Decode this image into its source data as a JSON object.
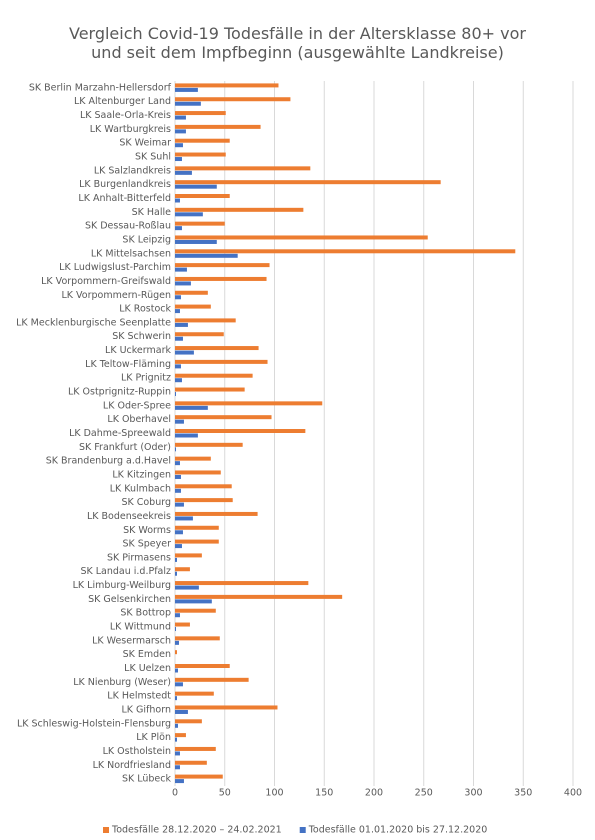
{
  "chart_data": {
    "type": "barh",
    "title": "Vergleich Covid-19 Todesfälle in der Altersklasse 80+ vor und seit dem Impfbeginn (ausgewählte Landkreise)",
    "categories": [
      "SK Berlin Marzahn-Hellersdorf",
      "LK Altenburger Land",
      "LK Saale-Orla-Kreis",
      "LK Wartburgkreis",
      "SK Weimar",
      "SK Suhl",
      "LK Salzlandkreis",
      "LK Burgenlandkreis",
      "LK Anhalt-Bitterfeld",
      "SK Halle",
      "SK Dessau-Roßlau",
      "SK Leipzig",
      "LK Mittelsachsen",
      "LK Ludwigslust-Parchim",
      "LK Vorpommern-Greifswald",
      "LK Vorpommern-Rügen",
      "LK Rostock",
      "LK Mecklenburgische Seenplatte",
      "SK Schwerin",
      "LK Uckermark",
      "LK Teltow-Fläming",
      "LK Prignitz",
      "LK Ostprignitz-Ruppin",
      "LK Oder-Spree",
      "LK Oberhavel",
      "LK Dahme-Spreewald",
      "SK Frankfurt (Oder)",
      "SK Brandenburg a.d.Havel",
      "LK Kitzingen",
      "LK Kulmbach",
      "SK Coburg",
      "LK Bodenseekreis",
      "SK Worms",
      "SK Speyer",
      "SK Pirmasens",
      "SK Landau i.d.Pfalz",
      "LK Limburg-Weilburg",
      "SK Gelsenkirchen",
      "SK Bottrop",
      "LK Wittmund",
      "LK Wesermarsch",
      "SK Emden",
      "LK Uelzen",
      "LK Nienburg (Weser)",
      "LK Helmstedt",
      "LK Gifhorn",
      "LK Schleswig-Holstein-Flensburg",
      "LK Plön",
      "LK Ostholstein",
      "LK Nordfriesland",
      "SK Lübeck"
    ],
    "series": [
      {
        "name": "Todesfälle 28.12.2020 – 24.02.2021",
        "color": "#ed7d31",
        "values": [
          104,
          116,
          51,
          86,
          55,
          51,
          136,
          267,
          55,
          129,
          50,
          254,
          342,
          95,
          92,
          33,
          36,
          61,
          49,
          84,
          93,
          78,
          70,
          148,
          97,
          131,
          68,
          36,
          46,
          57,
          58,
          83,
          44,
          44,
          27,
          15,
          134,
          168,
          41,
          15,
          45,
          2,
          55,
          74,
          39,
          103,
          27,
          11,
          41,
          32,
          48
        ]
      },
      {
        "name": "Todesfälle 01.01.2020 bis 27.12.2020",
        "color": "#4472c4",
        "values": [
          23,
          26,
          11,
          11,
          8,
          7,
          17,
          42,
          5,
          28,
          7,
          42,
          63,
          12,
          16,
          6,
          5,
          13,
          8,
          19,
          6,
          7,
          1,
          33,
          9,
          23,
          1,
          5,
          6,
          6,
          9,
          18,
          8,
          7,
          2,
          2,
          24,
          37,
          5,
          1,
          4,
          0,
          3,
          8,
          2,
          13,
          3,
          2,
          5,
          5,
          9
        ]
      }
    ],
    "xlim": [
      0,
      400
    ],
    "xticks": [
      0,
      50,
      100,
      150,
      200,
      250,
      300,
      350,
      400
    ],
    "grid": true,
    "legend": "bottom"
  }
}
